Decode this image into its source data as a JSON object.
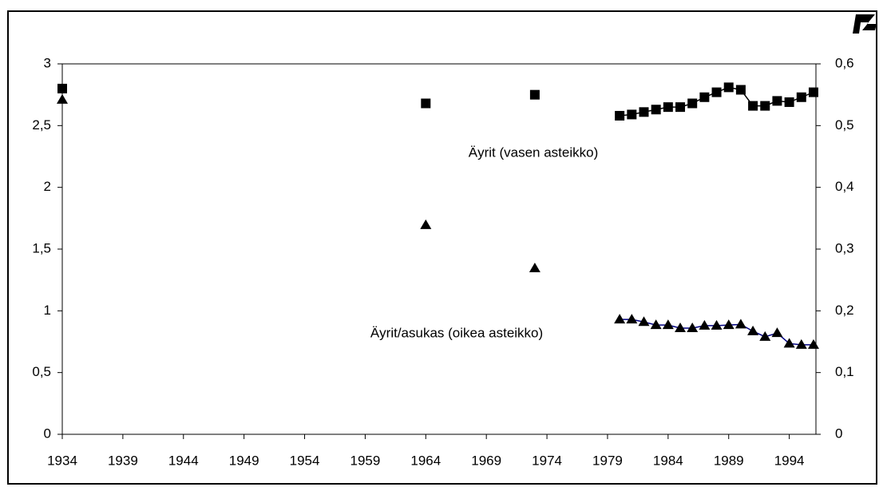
{
  "chart_data": {
    "type": "line",
    "annotations": [
      "Äyrit (vasen asteikko)",
      "Äyrit/asukas (oikea asteikko)"
    ],
    "x": [
      1934,
      1964,
      1973,
      1980,
      1981,
      1982,
      1983,
      1984,
      1985,
      1986,
      1987,
      1988,
      1989,
      1990,
      1991,
      1992,
      1993,
      1994,
      1995,
      1996
    ],
    "series": [
      {
        "marker": "square",
        "color": "#000000",
        "axis": "y",
        "values": [
          2.8,
          2.68,
          2.75,
          2.58,
          2.59,
          2.61,
          2.63,
          2.65,
          2.65,
          2.68,
          2.73,
          2.77,
          2.81,
          2.79,
          2.66,
          2.66,
          2.7,
          2.69,
          2.73,
          2.77
        ]
      },
      {
        "marker": "triangle",
        "color": "#000080",
        "axis": "y2",
        "values": [
          0.542,
          0.339,
          0.269,
          0.186,
          0.186,
          0.182,
          0.177,
          0.177,
          0.172,
          0.172,
          0.176,
          0.176,
          0.177,
          0.178,
          0.167,
          0.158,
          0.164,
          0.147,
          0.145,
          0.145
        ]
      }
    ],
    "xlim": [
      1934,
      1996.2
    ],
    "xticks": [
      1934,
      1939,
      1944,
      1949,
      1954,
      1959,
      1964,
      1969,
      1974,
      1979,
      1984,
      1989,
      1994
    ],
    "ylim": [
      0,
      3
    ],
    "yticks": [
      0,
      {
        "value": 0.5,
        "label": "0,5"
      },
      1,
      {
        "value": 1.5,
        "label": "1,5"
      },
      2,
      {
        "value": 2.5,
        "label": "2,5"
      },
      3
    ],
    "y2lim": [
      0,
      0.6
    ],
    "y2ticks": [
      0,
      {
        "value": 0.1,
        "label": "0,1"
      },
      {
        "value": 0.2,
        "label": "0,2"
      },
      {
        "value": 0.3,
        "label": "0,3"
      },
      {
        "value": 0.4,
        "label": "0,4"
      },
      {
        "value": 0.5,
        "label": "0,5"
      },
      {
        "value": 0.6,
        "label": "0,6"
      }
    ]
  }
}
